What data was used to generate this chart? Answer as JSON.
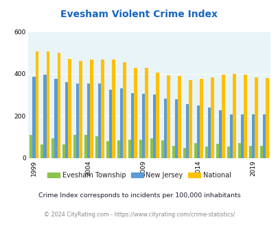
{
  "title": "Evesham Violent Crime Index",
  "subtitle": "Crime Index corresponds to incidents per 100,000 inhabitants",
  "footer": "© 2024 CityRating.com - https://www.cityrating.com/crime-statistics/",
  "years": [
    1999,
    2000,
    2001,
    2002,
    2003,
    2004,
    2005,
    2006,
    2007,
    2008,
    2009,
    2010,
    2011,
    2012,
    2013,
    2014,
    2015,
    2016,
    2017,
    2018,
    2019,
    2020
  ],
  "evesham": [
    110,
    65,
    95,
    65,
    110,
    110,
    105,
    80,
    85,
    88,
    88,
    95,
    85,
    60,
    50,
    72,
    55,
    68,
    55,
    73,
    60,
    60
  ],
  "nj": [
    385,
    395,
    375,
    362,
    355,
    355,
    355,
    325,
    330,
    308,
    305,
    303,
    283,
    280,
    258,
    250,
    240,
    228,
    208,
    207,
    207,
    207
  ],
  "national": [
    507,
    507,
    500,
    470,
    462,
    467,
    467,
    467,
    455,
    430,
    428,
    405,
    393,
    388,
    370,
    377,
    382,
    396,
    399,
    395,
    382,
    381
  ],
  "evesham_color": "#8BC34A",
  "nj_color": "#5B9BD5",
  "national_color": "#FFC000",
  "bg_color": "#E8F4F8",
  "title_color": "#1565C0",
  "ylim": [
    0,
    600
  ],
  "yticks": [
    0,
    200,
    400,
    600
  ],
  "bar_width": 0.27,
  "tick_label_years": [
    1999,
    2004,
    2009,
    2014,
    2019
  ]
}
